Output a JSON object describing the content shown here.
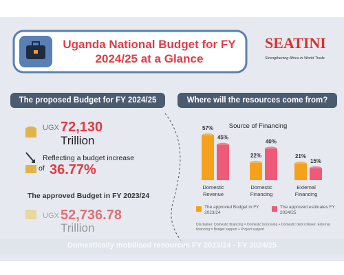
{
  "header": {
    "title": "Uganda National Budget for FY 2024/25 at a Glance",
    "logo": "SEATINI",
    "tagline": "Strengthening Africa in World Trade"
  },
  "left_panel": {
    "heading": "The proposed Budget for FY 2024/25",
    "proposed": {
      "currency": "UGX",
      "amount": "72,130",
      "unit": "Trillion"
    },
    "increase": {
      "text": "Reflecting a budget increase",
      "of": "of",
      "value": "36.77%"
    },
    "approved_heading": "The approved Budget in FY 2023/24",
    "approved": {
      "currency": "UGX",
      "amount": "52,736.78",
      "unit": "Trillion"
    }
  },
  "right_panel": {
    "heading": "Where will the resources come from?",
    "disclaimer": "Disclaimer: Domestic financing = Domestic borrowing + Domestic debt rollover; External financing = Budget support + Project support"
  },
  "footer": {
    "text": "Domestically mobilised resources FY 2023/24 - FY 2024/25"
  },
  "chart_data": {
    "type": "bar",
    "title": "Source of Financing",
    "categories": [
      "Domestic Revenue",
      "Domestic Financing",
      "External Financing"
    ],
    "series": [
      {
        "name": "The approved Budget in FY 2023/24",
        "color": "#f6a11c",
        "values": [
          57,
          22,
          21
        ],
        "value_labels": [
          "57%",
          "22%",
          "21%"
        ]
      },
      {
        "name": "The approved estimates FY 2024/25",
        "color": "#ee5a78",
        "values": [
          45,
          40,
          15
        ],
        "value_labels": [
          "45%",
          "40%",
          "15%"
        ]
      }
    ]
  }
}
